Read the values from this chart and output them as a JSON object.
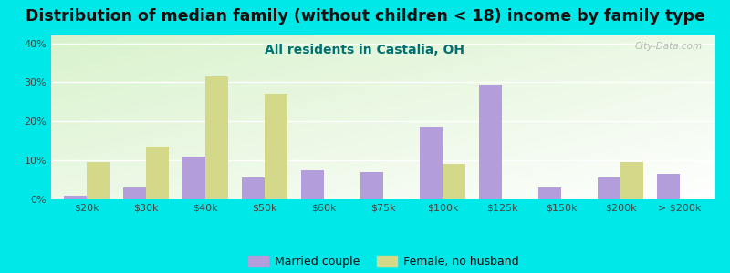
{
  "title": "Distribution of median family (without children < 18) income by family type",
  "subtitle": "All residents in Castalia, OH",
  "categories": [
    "$20k",
    "$30k",
    "$40k",
    "$50k",
    "$60k",
    "$75k",
    "$100k",
    "$125k",
    "$150k",
    "$200k",
    "> $200k"
  ],
  "married_couple": [
    1,
    3,
    11,
    5.5,
    7.5,
    7,
    18.5,
    29.5,
    3,
    5.5,
    6.5
  ],
  "female_no_husband": [
    9.5,
    13.5,
    31.5,
    27,
    0,
    0,
    9,
    0,
    0,
    9.5,
    0
  ],
  "married_color": "#b39ddb",
  "female_color": "#d4d98a",
  "background_outer": "#00e8e8",
  "title_fontsize": 12.5,
  "subtitle_fontsize": 10,
  "subtitle_color": "#007070",
  "ylabel_ticks": [
    "0%",
    "10%",
    "20%",
    "30%",
    "40%"
  ],
  "ylabel_vals": [
    0,
    10,
    20,
    30,
    40
  ],
  "ylim": [
    0,
    42
  ],
  "watermark": "City-Data.com",
  "bar_width": 0.38
}
